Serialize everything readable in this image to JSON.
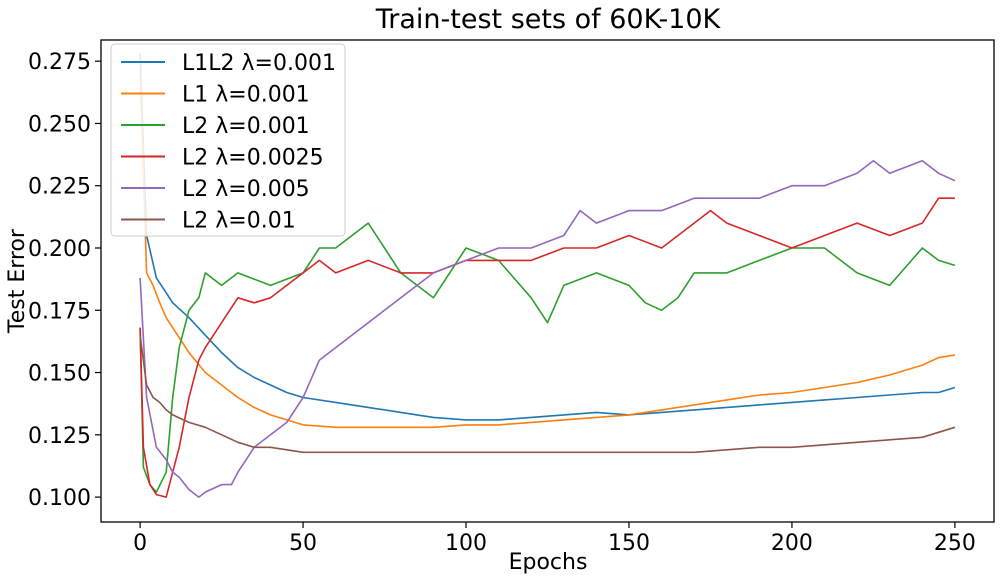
{
  "chart_data": {
    "type": "line",
    "title": "Train-test sets of 60K-10K",
    "xlabel": "Epochs",
    "ylabel": "Test Error",
    "xlim": [
      -12,
      262
    ],
    "ylim": [
      0.09,
      0.2835
    ],
    "xticks": [
      0,
      50,
      100,
      150,
      200,
      250
    ],
    "xtick_labels": [
      "0",
      "50",
      "100",
      "150",
      "200",
      "250"
    ],
    "yticks": [
      0.1,
      0.125,
      0.15,
      0.175,
      0.2,
      0.225,
      0.25,
      0.275
    ],
    "ytick_labels": [
      "0.100",
      "0.125",
      "0.150",
      "0.175",
      "0.200",
      "0.225",
      "0.250",
      "0.275"
    ],
    "grid": false,
    "legend_position": "top-left",
    "series": [
      {
        "name": "L1L2 λ=0.001",
        "color": "#1f77b4",
        "x": [
          0,
          2,
          5,
          8,
          10,
          15,
          20,
          25,
          30,
          35,
          40,
          45,
          50,
          60,
          70,
          80,
          90,
          100,
          110,
          120,
          130,
          140,
          150,
          160,
          170,
          180,
          190,
          200,
          210,
          220,
          230,
          240,
          245,
          250
        ],
        "y": [
          0.278,
          0.205,
          0.188,
          0.182,
          0.178,
          0.172,
          0.165,
          0.158,
          0.152,
          0.148,
          0.145,
          0.142,
          0.14,
          0.138,
          0.136,
          0.134,
          0.132,
          0.131,
          0.131,
          0.132,
          0.133,
          0.134,
          0.133,
          0.134,
          0.135,
          0.136,
          0.137,
          0.138,
          0.139,
          0.14,
          0.141,
          0.142,
          0.142,
          0.144
        ]
      },
      {
        "name": "L1 λ=0.001",
        "color": "#ff7f0e",
        "x": [
          0,
          2,
          4,
          6,
          8,
          10,
          15,
          20,
          25,
          30,
          35,
          40,
          45,
          50,
          60,
          70,
          80,
          90,
          100,
          110,
          120,
          130,
          140,
          150,
          160,
          170,
          180,
          190,
          200,
          210,
          220,
          230,
          240,
          245,
          250
        ],
        "y": [
          0.27,
          0.19,
          0.185,
          0.178,
          0.172,
          0.168,
          0.158,
          0.15,
          0.145,
          0.14,
          0.136,
          0.133,
          0.131,
          0.129,
          0.128,
          0.128,
          0.128,
          0.128,
          0.129,
          0.129,
          0.13,
          0.131,
          0.132,
          0.133,
          0.135,
          0.137,
          0.139,
          0.141,
          0.142,
          0.144,
          0.146,
          0.149,
          0.153,
          0.156,
          0.157
        ]
      },
      {
        "name": "L2 λ=0.001",
        "color": "#2ca02c",
        "x": [
          0,
          1,
          3,
          5,
          8,
          10,
          12,
          15,
          18,
          20,
          25,
          30,
          40,
          50,
          55,
          60,
          70,
          75,
          80,
          90,
          100,
          110,
          120,
          125,
          130,
          140,
          150,
          155,
          160,
          165,
          170,
          180,
          190,
          200,
          210,
          220,
          230,
          240,
          245,
          250
        ],
        "y": [
          0.168,
          0.112,
          0.105,
          0.102,
          0.11,
          0.14,
          0.16,
          0.175,
          0.18,
          0.19,
          0.185,
          0.19,
          0.185,
          0.19,
          0.2,
          0.2,
          0.21,
          0.2,
          0.19,
          0.18,
          0.2,
          0.195,
          0.18,
          0.17,
          0.185,
          0.19,
          0.185,
          0.178,
          0.175,
          0.18,
          0.19,
          0.19,
          0.195,
          0.2,
          0.2,
          0.19,
          0.185,
          0.2,
          0.195,
          0.193
        ]
      },
      {
        "name": "L2 λ=0.0025",
        "color": "#d62728",
        "x": [
          0,
          1,
          3,
          5,
          8,
          10,
          12,
          15,
          18,
          20,
          25,
          30,
          35,
          40,
          50,
          55,
          60,
          70,
          80,
          90,
          100,
          110,
          120,
          130,
          140,
          150,
          160,
          170,
          175,
          180,
          190,
          200,
          210,
          220,
          230,
          240,
          245,
          250
        ],
        "y": [
          0.168,
          0.12,
          0.105,
          0.101,
          0.1,
          0.11,
          0.12,
          0.14,
          0.155,
          0.16,
          0.17,
          0.18,
          0.178,
          0.18,
          0.19,
          0.195,
          0.19,
          0.195,
          0.19,
          0.19,
          0.195,
          0.195,
          0.195,
          0.2,
          0.2,
          0.205,
          0.2,
          0.21,
          0.215,
          0.21,
          0.205,
          0.2,
          0.205,
          0.21,
          0.205,
          0.21,
          0.22,
          0.22
        ]
      },
      {
        "name": "L2 λ=0.005",
        "color": "#9467bd",
        "x": [
          0,
          2,
          5,
          8,
          10,
          12,
          15,
          18,
          20,
          25,
          28,
          30,
          35,
          40,
          45,
          50,
          55,
          60,
          70,
          80,
          90,
          100,
          110,
          120,
          130,
          135,
          140,
          150,
          160,
          170,
          180,
          190,
          200,
          210,
          220,
          225,
          230,
          240,
          245,
          250
        ],
        "y": [
          0.188,
          0.14,
          0.12,
          0.115,
          0.11,
          0.108,
          0.103,
          0.1,
          0.102,
          0.105,
          0.105,
          0.11,
          0.12,
          0.125,
          0.13,
          0.14,
          0.155,
          0.16,
          0.17,
          0.18,
          0.19,
          0.195,
          0.2,
          0.2,
          0.205,
          0.215,
          0.21,
          0.215,
          0.215,
          0.22,
          0.22,
          0.22,
          0.225,
          0.225,
          0.23,
          0.235,
          0.23,
          0.235,
          0.23,
          0.227
        ]
      },
      {
        "name": "L2 λ=0.01",
        "color": "#8c564b",
        "x": [
          0,
          2,
          4,
          6,
          8,
          10,
          15,
          20,
          25,
          30,
          35,
          40,
          45,
          50,
          60,
          70,
          80,
          90,
          100,
          110,
          120,
          130,
          140,
          150,
          160,
          170,
          180,
          190,
          200,
          210,
          220,
          230,
          240,
          245,
          250
        ],
        "y": [
          0.165,
          0.145,
          0.14,
          0.138,
          0.135,
          0.133,
          0.13,
          0.128,
          0.125,
          0.122,
          0.12,
          0.12,
          0.119,
          0.118,
          0.118,
          0.118,
          0.118,
          0.118,
          0.118,
          0.118,
          0.118,
          0.118,
          0.118,
          0.118,
          0.118,
          0.118,
          0.119,
          0.12,
          0.12,
          0.121,
          0.122,
          0.123,
          0.124,
          0.126,
          0.128
        ]
      }
    ]
  }
}
